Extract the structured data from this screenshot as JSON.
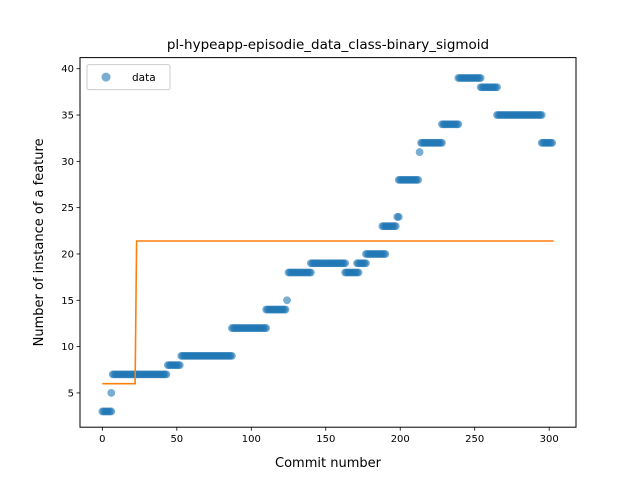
{
  "chart_data": {
    "type": "scatter",
    "title": "pl-hypeapp-episodie_data_class-binary_sigmoid",
    "xlabel": "Commit number",
    "ylabel": "Number of instance of a feature",
    "xlim": [
      -15,
      318
    ],
    "ylim": [
      1.3,
      41.2
    ],
    "xticks": [
      0,
      50,
      100,
      150,
      200,
      250,
      300
    ],
    "yticks": [
      5,
      10,
      15,
      20,
      25,
      30,
      35,
      40
    ],
    "legend": {
      "placement": "upper-left",
      "entries": [
        "data"
      ]
    },
    "colors": {
      "data": "#1f77b4",
      "fit": "#ff7f0e"
    },
    "series": [
      {
        "name": "data",
        "kind": "scatter",
        "segments": [
          {
            "x_start": 0,
            "x_end": 6,
            "y": 3
          },
          {
            "x_start": 6,
            "x_end": 6,
            "y": 5
          },
          {
            "x_start": 7,
            "x_end": 43,
            "y": 7
          },
          {
            "x_start": 44,
            "x_end": 52,
            "y": 8
          },
          {
            "x_start": 53,
            "x_end": 87,
            "y": 9
          },
          {
            "x_start": 87,
            "x_end": 110,
            "y": 12
          },
          {
            "x_start": 110,
            "x_end": 123,
            "y": 14
          },
          {
            "x_start": 124,
            "x_end": 124,
            "y": 15
          },
          {
            "x_start": 125,
            "x_end": 140,
            "y": 18
          },
          {
            "x_start": 140,
            "x_end": 163,
            "y": 19
          },
          {
            "x_start": 163,
            "x_end": 172,
            "y": 18
          },
          {
            "x_start": 171,
            "x_end": 177,
            "y": 19
          },
          {
            "x_start": 177,
            "x_end": 190,
            "y": 20
          },
          {
            "x_start": 188,
            "x_end": 197,
            "y": 23
          },
          {
            "x_start": 198,
            "x_end": 199,
            "y": 24
          },
          {
            "x_start": 199,
            "x_end": 212,
            "y": 28
          },
          {
            "x_start": 213,
            "x_end": 213,
            "y": 31
          },
          {
            "x_start": 214,
            "x_end": 228,
            "y": 32
          },
          {
            "x_start": 228,
            "x_end": 239,
            "y": 34
          },
          {
            "x_start": 239,
            "x_end": 254,
            "y": 39
          },
          {
            "x_start": 254,
            "x_end": 265,
            "y": 38
          },
          {
            "x_start": 265,
            "x_end": 295,
            "y": 35
          },
          {
            "x_start": 295,
            "x_end": 302,
            "y": 32
          }
        ]
      },
      {
        "name": "",
        "kind": "line",
        "points": [
          [
            0,
            6
          ],
          [
            22,
            6
          ],
          [
            23,
            21.4
          ],
          [
            303,
            21.4
          ]
        ]
      }
    ]
  }
}
